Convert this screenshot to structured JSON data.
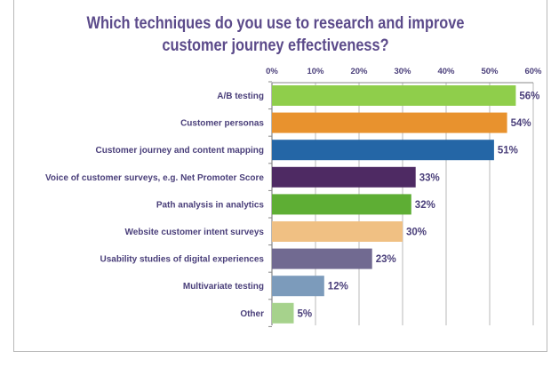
{
  "chart_data": {
    "type": "bar",
    "orientation": "horizontal",
    "title": [
      "Which techniques do you use to research and improve",
      "customer journey effectiveness?"
    ],
    "categories": [
      "A/B testing",
      "Customer personas",
      "Customer journey and content mapping",
      "Voice of customer surveys, e.g. Net Promoter Score",
      "Path analysis in analytics",
      "Website customer intent surveys",
      "Usability studies of digital experiences",
      "Multivariate testing",
      "Other"
    ],
    "values": [
      56,
      54,
      51,
      33,
      32,
      30,
      23,
      12,
      5
    ],
    "value_labels": [
      "56%",
      "54%",
      "51%",
      "33%",
      "32%",
      "30%",
      "23%",
      "12%",
      "5%"
    ],
    "colors": [
      "#8fce4b",
      "#e8922e",
      "#2466a6",
      "#4e2a63",
      "#5eae34",
      "#f0c083",
      "#716a91",
      "#7c9bbb",
      "#a6d28c"
    ],
    "xlim": [
      0,
      60
    ],
    "xticks": [
      0,
      10,
      20,
      30,
      40,
      50,
      60
    ],
    "xtick_labels": [
      "0%",
      "10%",
      "20%",
      "30%",
      "40%",
      "50%",
      "60%"
    ],
    "xaxis_position": "top",
    "grid": true,
    "xlabel": "",
    "ylabel": ""
  }
}
